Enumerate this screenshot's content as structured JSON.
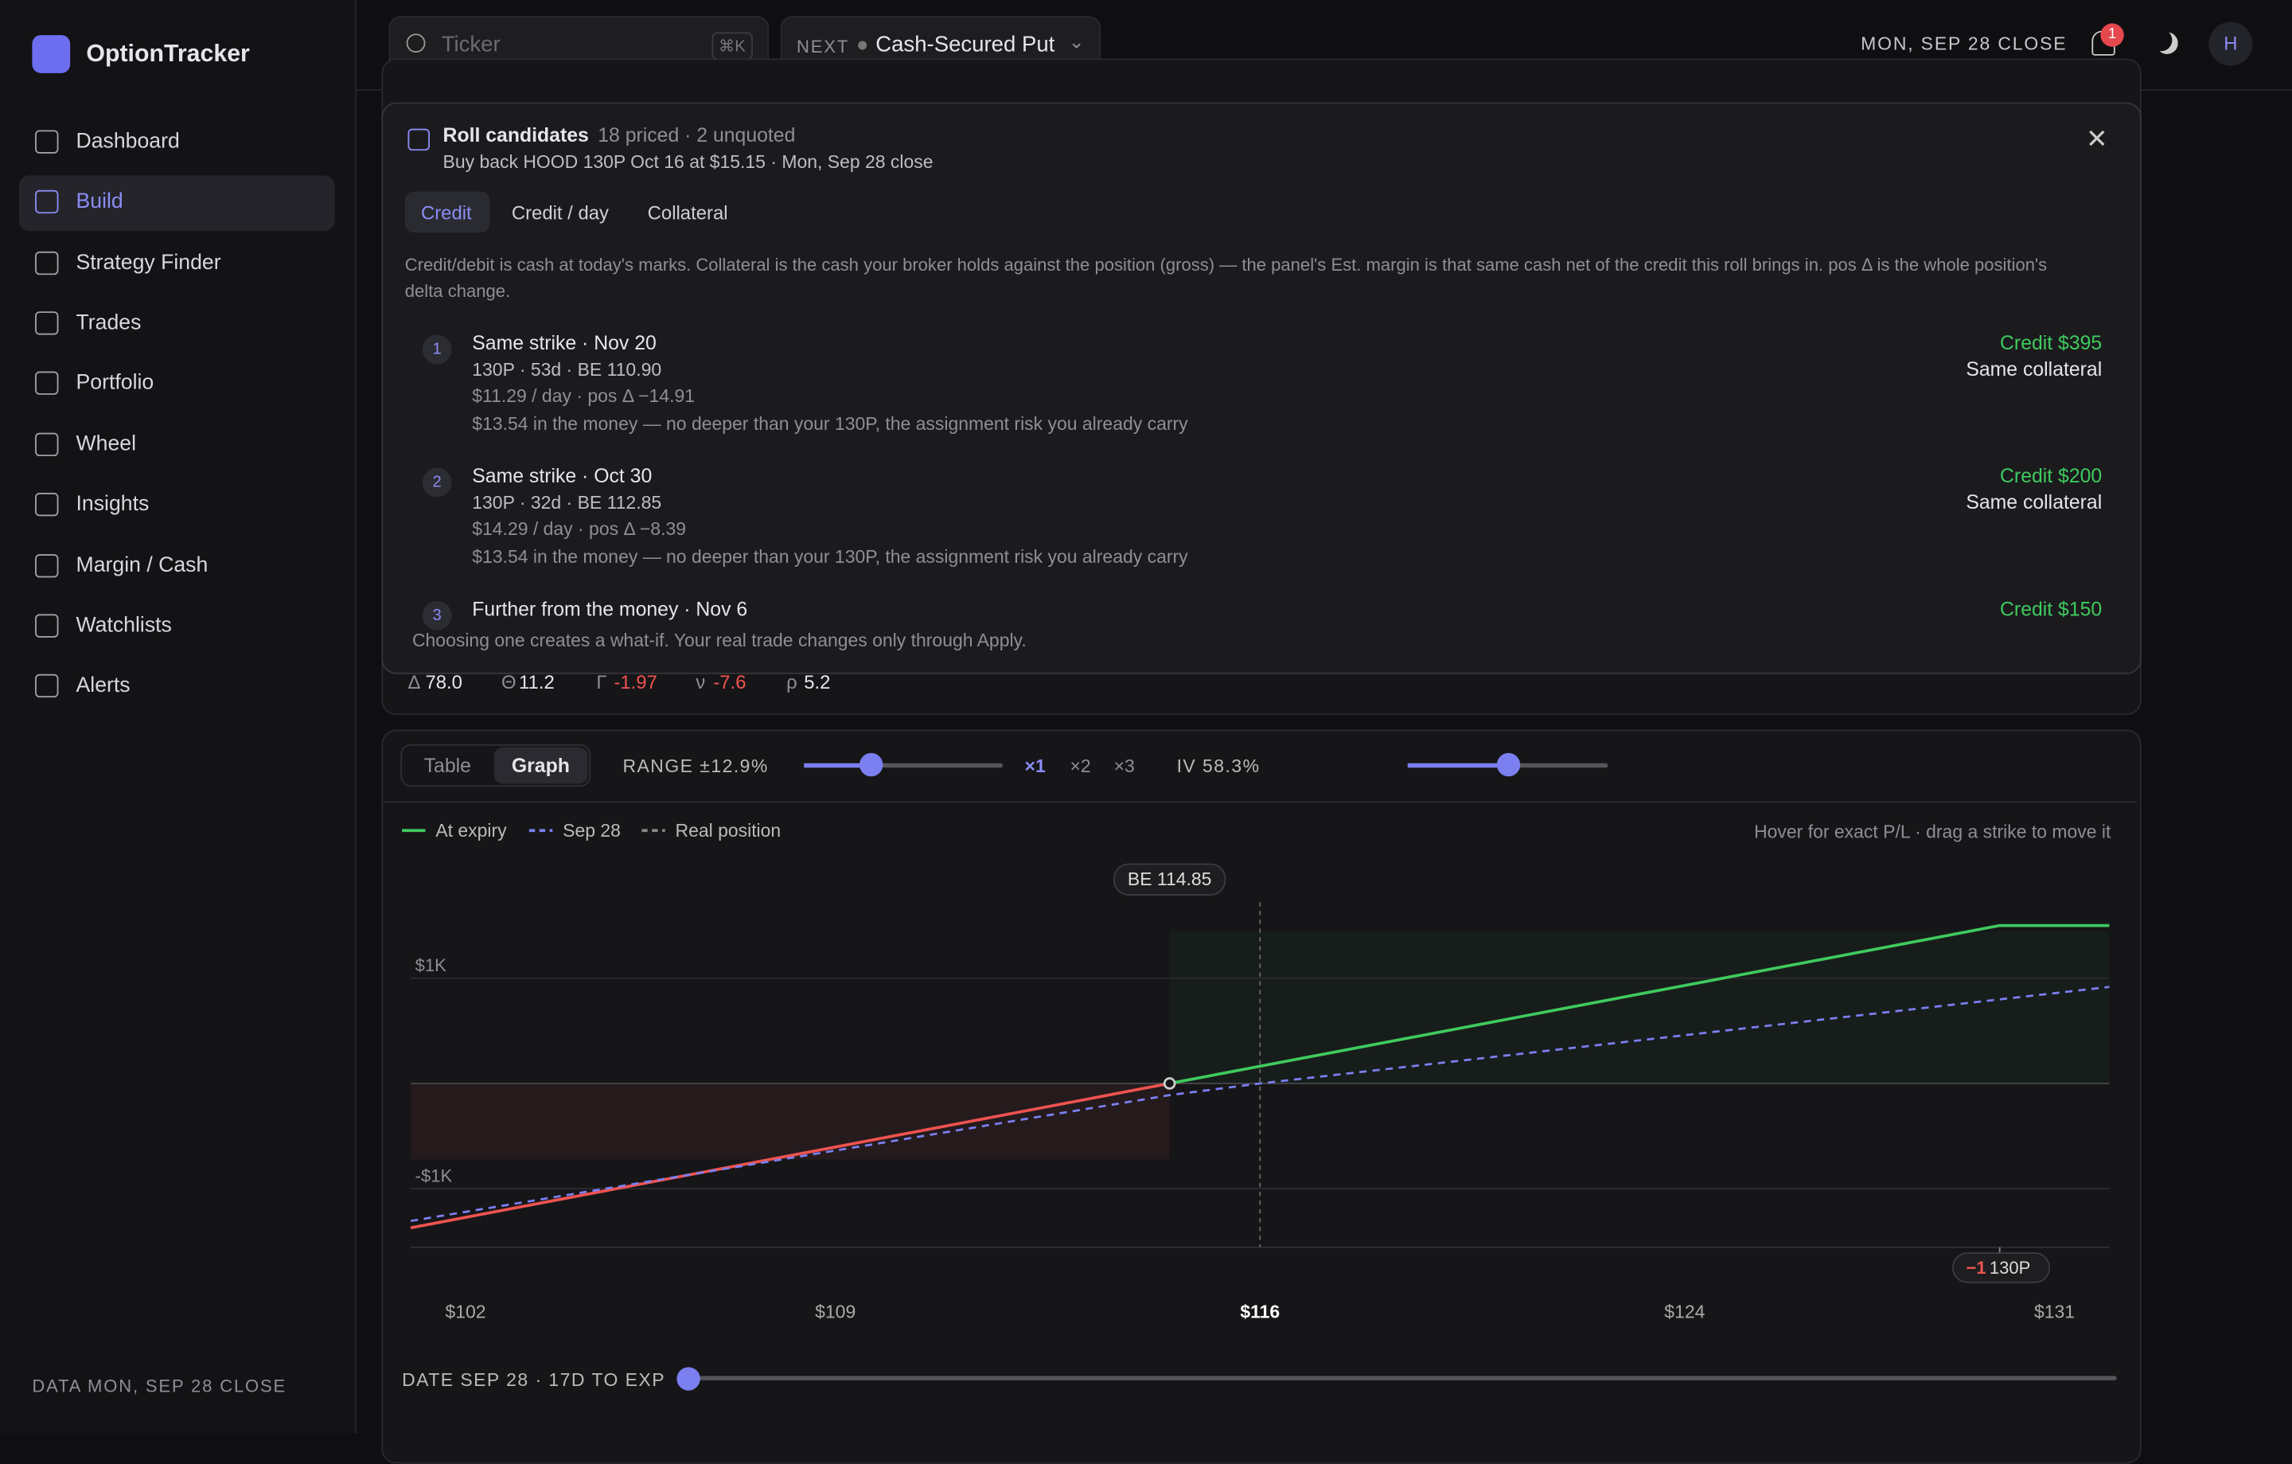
{
  "sidebar": {
    "brand": "OptionTracker",
    "nav": [
      "Dashboard",
      "Build",
      "Strategy Finder",
      "Trades",
      "Portfolio",
      "Wheel",
      "Insights",
      "Margin / Cash",
      "Watchlists",
      "Alerts"
    ],
    "footer": "DATA MON, SEP 28 CLOSE"
  },
  "topbar": {
    "search_placeholder": "Ticker",
    "shortcut": "⌘K",
    "next_label": "NEXT",
    "next_value": "Cash-Secured Put",
    "date": "MON, SEP 28 CLOSE",
    "notifications": 1,
    "avatar": "H"
  },
  "greeks": [
    {
      "symbol": "Δ",
      "value": "78.0"
    },
    {
      "symbol": "Θ",
      "value": "11.2"
    },
    {
      "symbol": "Γ",
      "value": "-1.97"
    },
    {
      "symbol": "ν",
      "value": "-7.6"
    },
    {
      "symbol": "ρ",
      "value": "5.2"
    }
  ],
  "popover": {
    "title": "Roll candidates",
    "meta": "18 priced · 2 unquoted",
    "subtitle": "Buy back HOOD 130P Oct 16 at $15.15 · Mon, Sep 28 close",
    "tabs": [
      "Credit",
      "Credit / day",
      "Collateral"
    ],
    "description": "Credit/debit is cash at today's marks. Collateral is the cash your broker holds against the position (gross) — the panel's Est. margin is that same cash net of the credit this roll brings in. pos Δ is the whole position's delta change.",
    "candidates": [
      {
        "index": "1",
        "title": "Same strike · Nov 20",
        "line1": "130P · 53d · BE 110.90",
        "line2": "$11.29 / day · pos Δ −14.91",
        "line3": "$13.54 in the money — no deeper than your 130P, the assignment risk you already carry",
        "credit": "Credit $395",
        "collateral": "Same collateral"
      },
      {
        "index": "2",
        "title": "Same strike · Oct 30",
        "line1": "130P · 32d · BE 112.85",
        "line2": "$14.29 / day · pos Δ −8.39",
        "line3": "$13.54 in the money — no deeper than your 130P, the assignment risk you already carry",
        "credit": "Credit $200",
        "collateral": "Same collateral"
      },
      {
        "index": "3",
        "title": "Further from the money · Nov 6",
        "credit": "Credit $150"
      }
    ],
    "footer": "Choosing one creates a what-if. Your real trade changes only through Apply."
  },
  "graph": {
    "mode_tabs": [
      "Table",
      "Graph"
    ],
    "range_label": "RANGE ±12.9%",
    "multipliers": [
      "×1",
      "×2",
      "×3"
    ],
    "iv_label": "IV 58.3%",
    "legend": [
      "At expiry",
      "Sep 28",
      "Real position"
    ],
    "hint": "Hover for exact P/L · drag a strike to move it",
    "be_label": "BE 114.85",
    "strike_qty": "−1",
    "strike_label": "130P",
    "date_label": "DATE SEP 28 · 17D TO EXP",
    "chart": {
      "type": "line",
      "xlim": [
        101,
        132
      ],
      "ylim": [
        -1556,
        1722
      ],
      "xticks": [
        {
          "value": 102,
          "label": "$102"
        },
        {
          "value": 108.75,
          "label": "$109"
        },
        {
          "value": 116.5,
          "label": "$116"
        },
        {
          "value": 124.25,
          "label": "$124"
        },
        {
          "value": 131,
          "label": "$131"
        }
      ],
      "yticks": [
        {
          "value": 1000,
          "label": "$1K"
        },
        {
          "value": -1000,
          "label": "-$1K"
        }
      ],
      "series": [
        {
          "name": "At expiry",
          "color": "#3fca5e",
          "x": [
            101,
            114.85,
            130,
            132
          ],
          "values": [
            -1371,
            0,
            1500,
            1500
          ]
        },
        {
          "name": "Sep 28",
          "color": "#7b7ff0",
          "dashed": true,
          "x": [
            101,
            114.85,
            116.5,
            132
          ],
          "values": [
            -1306,
            -111,
            0,
            917
          ]
        }
      ]
    }
  }
}
